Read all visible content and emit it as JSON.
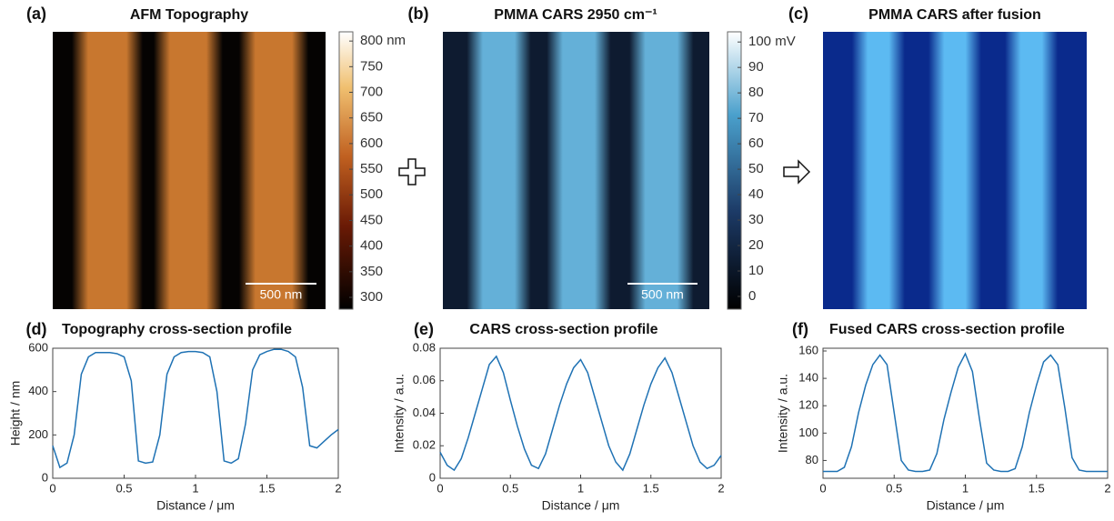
{
  "chart_data": [
    {
      "type": "image",
      "label": "(a)",
      "title": "AFM Topography",
      "scalebar_label": "500 nm",
      "clim": [
        277,
        818
      ],
      "cticks": [
        {
          "value": 800,
          "label": "800 nm"
        },
        750,
        700,
        650,
        600,
        550,
        500,
        450,
        400,
        350,
        300
      ]
    },
    {
      "type": "image",
      "label": "(b)",
      "title": "PMMA CARS 2950 cm⁻¹",
      "scalebar_label": "500 nm",
      "clim": [
        -5,
        104
      ],
      "cticks": [
        {
          "value": 100,
          "label": "100 mV"
        },
        90,
        80,
        70,
        60,
        50,
        40,
        30,
        20,
        10,
        0
      ]
    },
    {
      "type": "image",
      "label": "(c)",
      "title": "PMMA CARS after fusion"
    },
    {
      "type": "line",
      "label": "(d)",
      "title": "Topography cross-section profile",
      "xlabel": "Distance / μm",
      "ylabel": "Height / nm",
      "color": "#1f72b4",
      "xlim": [
        0,
        2
      ],
      "ylim": [
        0,
        600
      ],
      "xticks": [
        0,
        0.5,
        1,
        1.5,
        2
      ],
      "yticks": [
        0,
        200,
        400,
        600
      ],
      "x": [
        0,
        0.05,
        0.1,
        0.15,
        0.2,
        0.25,
        0.3,
        0.35,
        0.4,
        0.45,
        0.5,
        0.55,
        0.6,
        0.65,
        0.7,
        0.75,
        0.8,
        0.85,
        0.9,
        0.95,
        1,
        1.05,
        1.1,
        1.15,
        1.2,
        1.25,
        1.3,
        1.35,
        1.4,
        1.45,
        1.5,
        1.55,
        1.6,
        1.65,
        1.7,
        1.75,
        1.8,
        1.85,
        1.9,
        1.95,
        2
      ],
      "values": [
        150,
        50,
        70,
        200,
        480,
        560,
        580,
        580,
        580,
        575,
        560,
        450,
        80,
        70,
        75,
        200,
        480,
        560,
        580,
        585,
        585,
        580,
        560,
        400,
        80,
        70,
        90,
        250,
        500,
        570,
        585,
        595,
        595,
        585,
        560,
        420,
        150,
        140,
        170,
        200,
        225
      ]
    },
    {
      "type": "line",
      "label": "(e)",
      "title": "CARS cross-section profile",
      "xlabel": "Distance / μm",
      "ylabel": "Intensity / a.u.",
      "color": "#1f72b4",
      "xlim": [
        0,
        2
      ],
      "ylim": [
        0,
        0.08
      ],
      "xticks": [
        0,
        0.5,
        1,
        1.5,
        2
      ],
      "yticks": [
        0,
        0.02,
        0.04,
        0.06,
        0.08
      ],
      "x": [
        0,
        0.05,
        0.1,
        0.15,
        0.2,
        0.25,
        0.3,
        0.35,
        0.4,
        0.45,
        0.5,
        0.55,
        0.6,
        0.65,
        0.7,
        0.75,
        0.8,
        0.85,
        0.9,
        0.95,
        1,
        1.05,
        1.1,
        1.15,
        1.2,
        1.25,
        1.3,
        1.35,
        1.4,
        1.45,
        1.5,
        1.55,
        1.6,
        1.65,
        1.7,
        1.75,
        1.8,
        1.85,
        1.9,
        1.95,
        2
      ],
      "values": [
        0.016,
        0.008,
        0.005,
        0.012,
        0.025,
        0.04,
        0.055,
        0.07,
        0.075,
        0.065,
        0.048,
        0.032,
        0.018,
        0.008,
        0.006,
        0.015,
        0.03,
        0.045,
        0.058,
        0.068,
        0.073,
        0.065,
        0.05,
        0.035,
        0.02,
        0.01,
        0.005,
        0.015,
        0.03,
        0.045,
        0.058,
        0.068,
        0.074,
        0.065,
        0.05,
        0.035,
        0.02,
        0.01,
        0.006,
        0.008,
        0.014
      ]
    },
    {
      "type": "line",
      "label": "(f)",
      "title": "Fused CARS cross-section profile",
      "xlabel": "Distance / μm",
      "ylabel": "Intensity / a.u.",
      "color": "#1f72b4",
      "xlim": [
        0,
        2
      ],
      "ylim": [
        67,
        162
      ],
      "xticks": [
        0,
        0.5,
        1,
        1.5,
        2
      ],
      "yticks": [
        80,
        100,
        120,
        140,
        160
      ],
      "x": [
        0,
        0.05,
        0.1,
        0.15,
        0.2,
        0.25,
        0.3,
        0.35,
        0.4,
        0.45,
        0.5,
        0.55,
        0.6,
        0.65,
        0.7,
        0.75,
        0.8,
        0.85,
        0.9,
        0.95,
        1,
        1.05,
        1.1,
        1.15,
        1.2,
        1.25,
        1.3,
        1.35,
        1.4,
        1.45,
        1.5,
        1.55,
        1.6,
        1.65,
        1.7,
        1.75,
        1.8,
        1.85,
        1.9,
        1.95,
        2
      ],
      "values": [
        72,
        72,
        72,
        75,
        90,
        115,
        135,
        150,
        157,
        150,
        115,
        80,
        73,
        72,
        72,
        73,
        85,
        110,
        130,
        148,
        158,
        145,
        110,
        78,
        73,
        72,
        72,
        74,
        90,
        115,
        135,
        152,
        157,
        150,
        118,
        82,
        73,
        72,
        72,
        72,
        72
      ]
    }
  ]
}
